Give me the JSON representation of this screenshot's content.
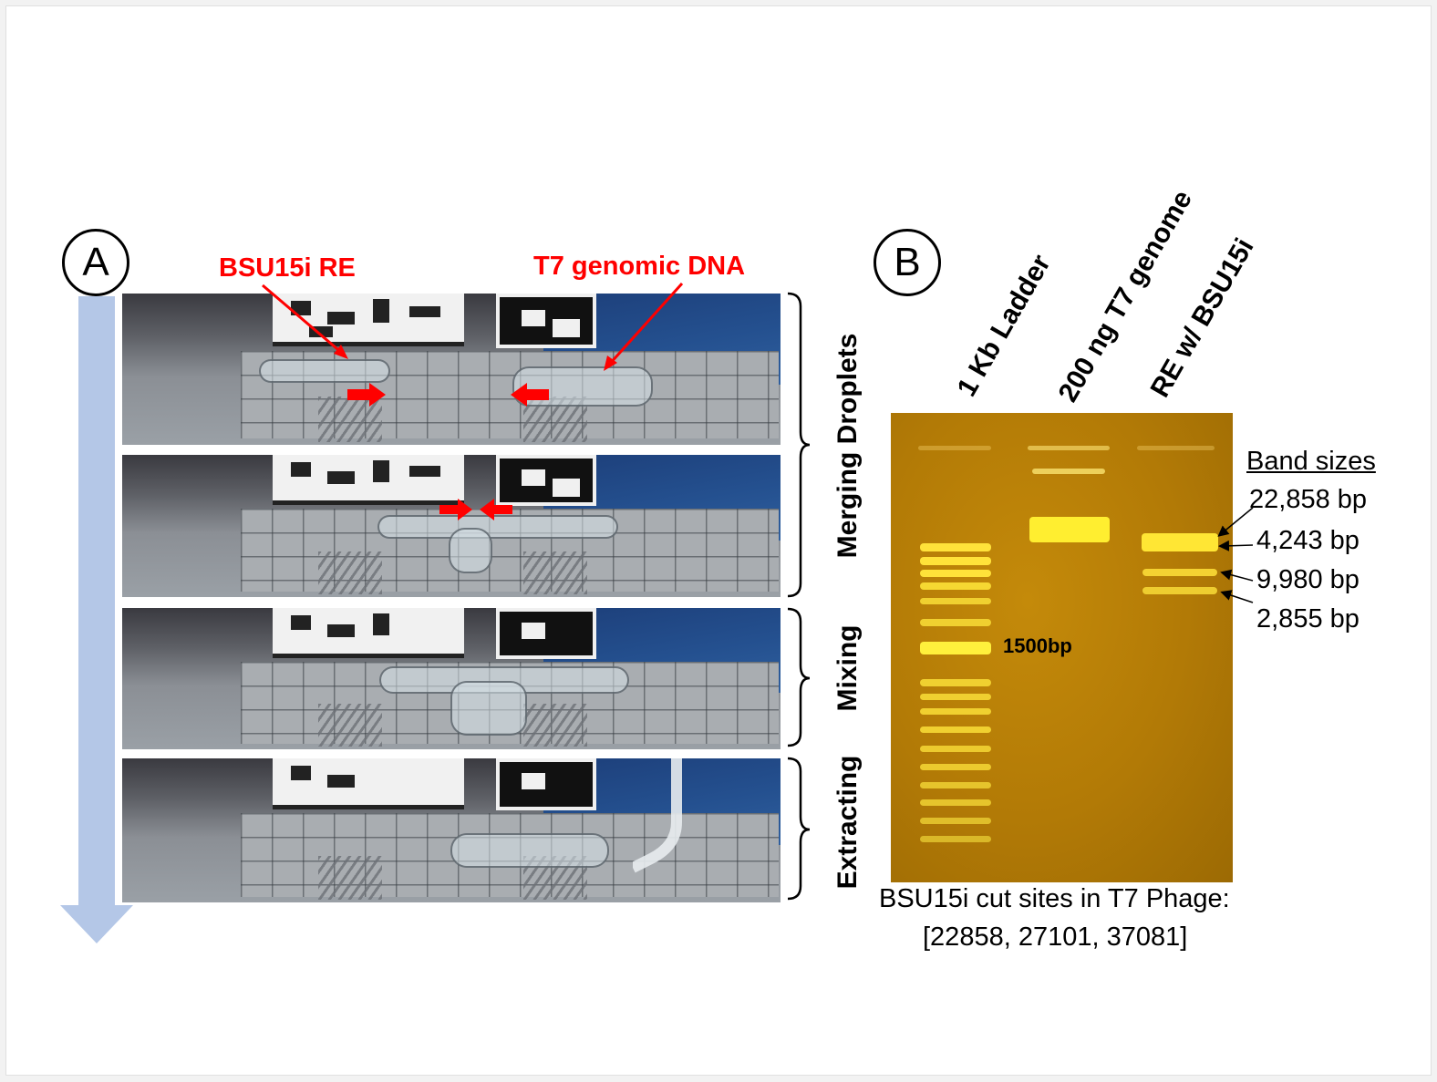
{
  "panel_a": {
    "letter": "A",
    "reagent_labels": {
      "left": "BSU15i RE",
      "right": "T7 genomic DNA"
    },
    "steps": [
      "Merging Droplets",
      "Mixing",
      "Extracting"
    ],
    "colors": {
      "annotation": "#ff0000",
      "time_arrow": "#b4c7e7"
    }
  },
  "panel_b": {
    "letter": "B",
    "lanes": [
      "1 Kb Ladder",
      "200 ng T7 genome",
      "RE w/ BSU15i"
    ],
    "ladder_marker": "1500bp",
    "band_sizes_title": "Band sizes",
    "band_sizes": [
      "22,858 bp",
      "4,243 bp",
      "9,980 bp",
      "2,855 bp"
    ],
    "caption_line1": "BSU15i cut sites in T7 Phage:",
    "caption_line2": "[22858, 27101, 37081]",
    "colors": {
      "gel": "#b27a06",
      "band": "#ffea3a"
    }
  }
}
